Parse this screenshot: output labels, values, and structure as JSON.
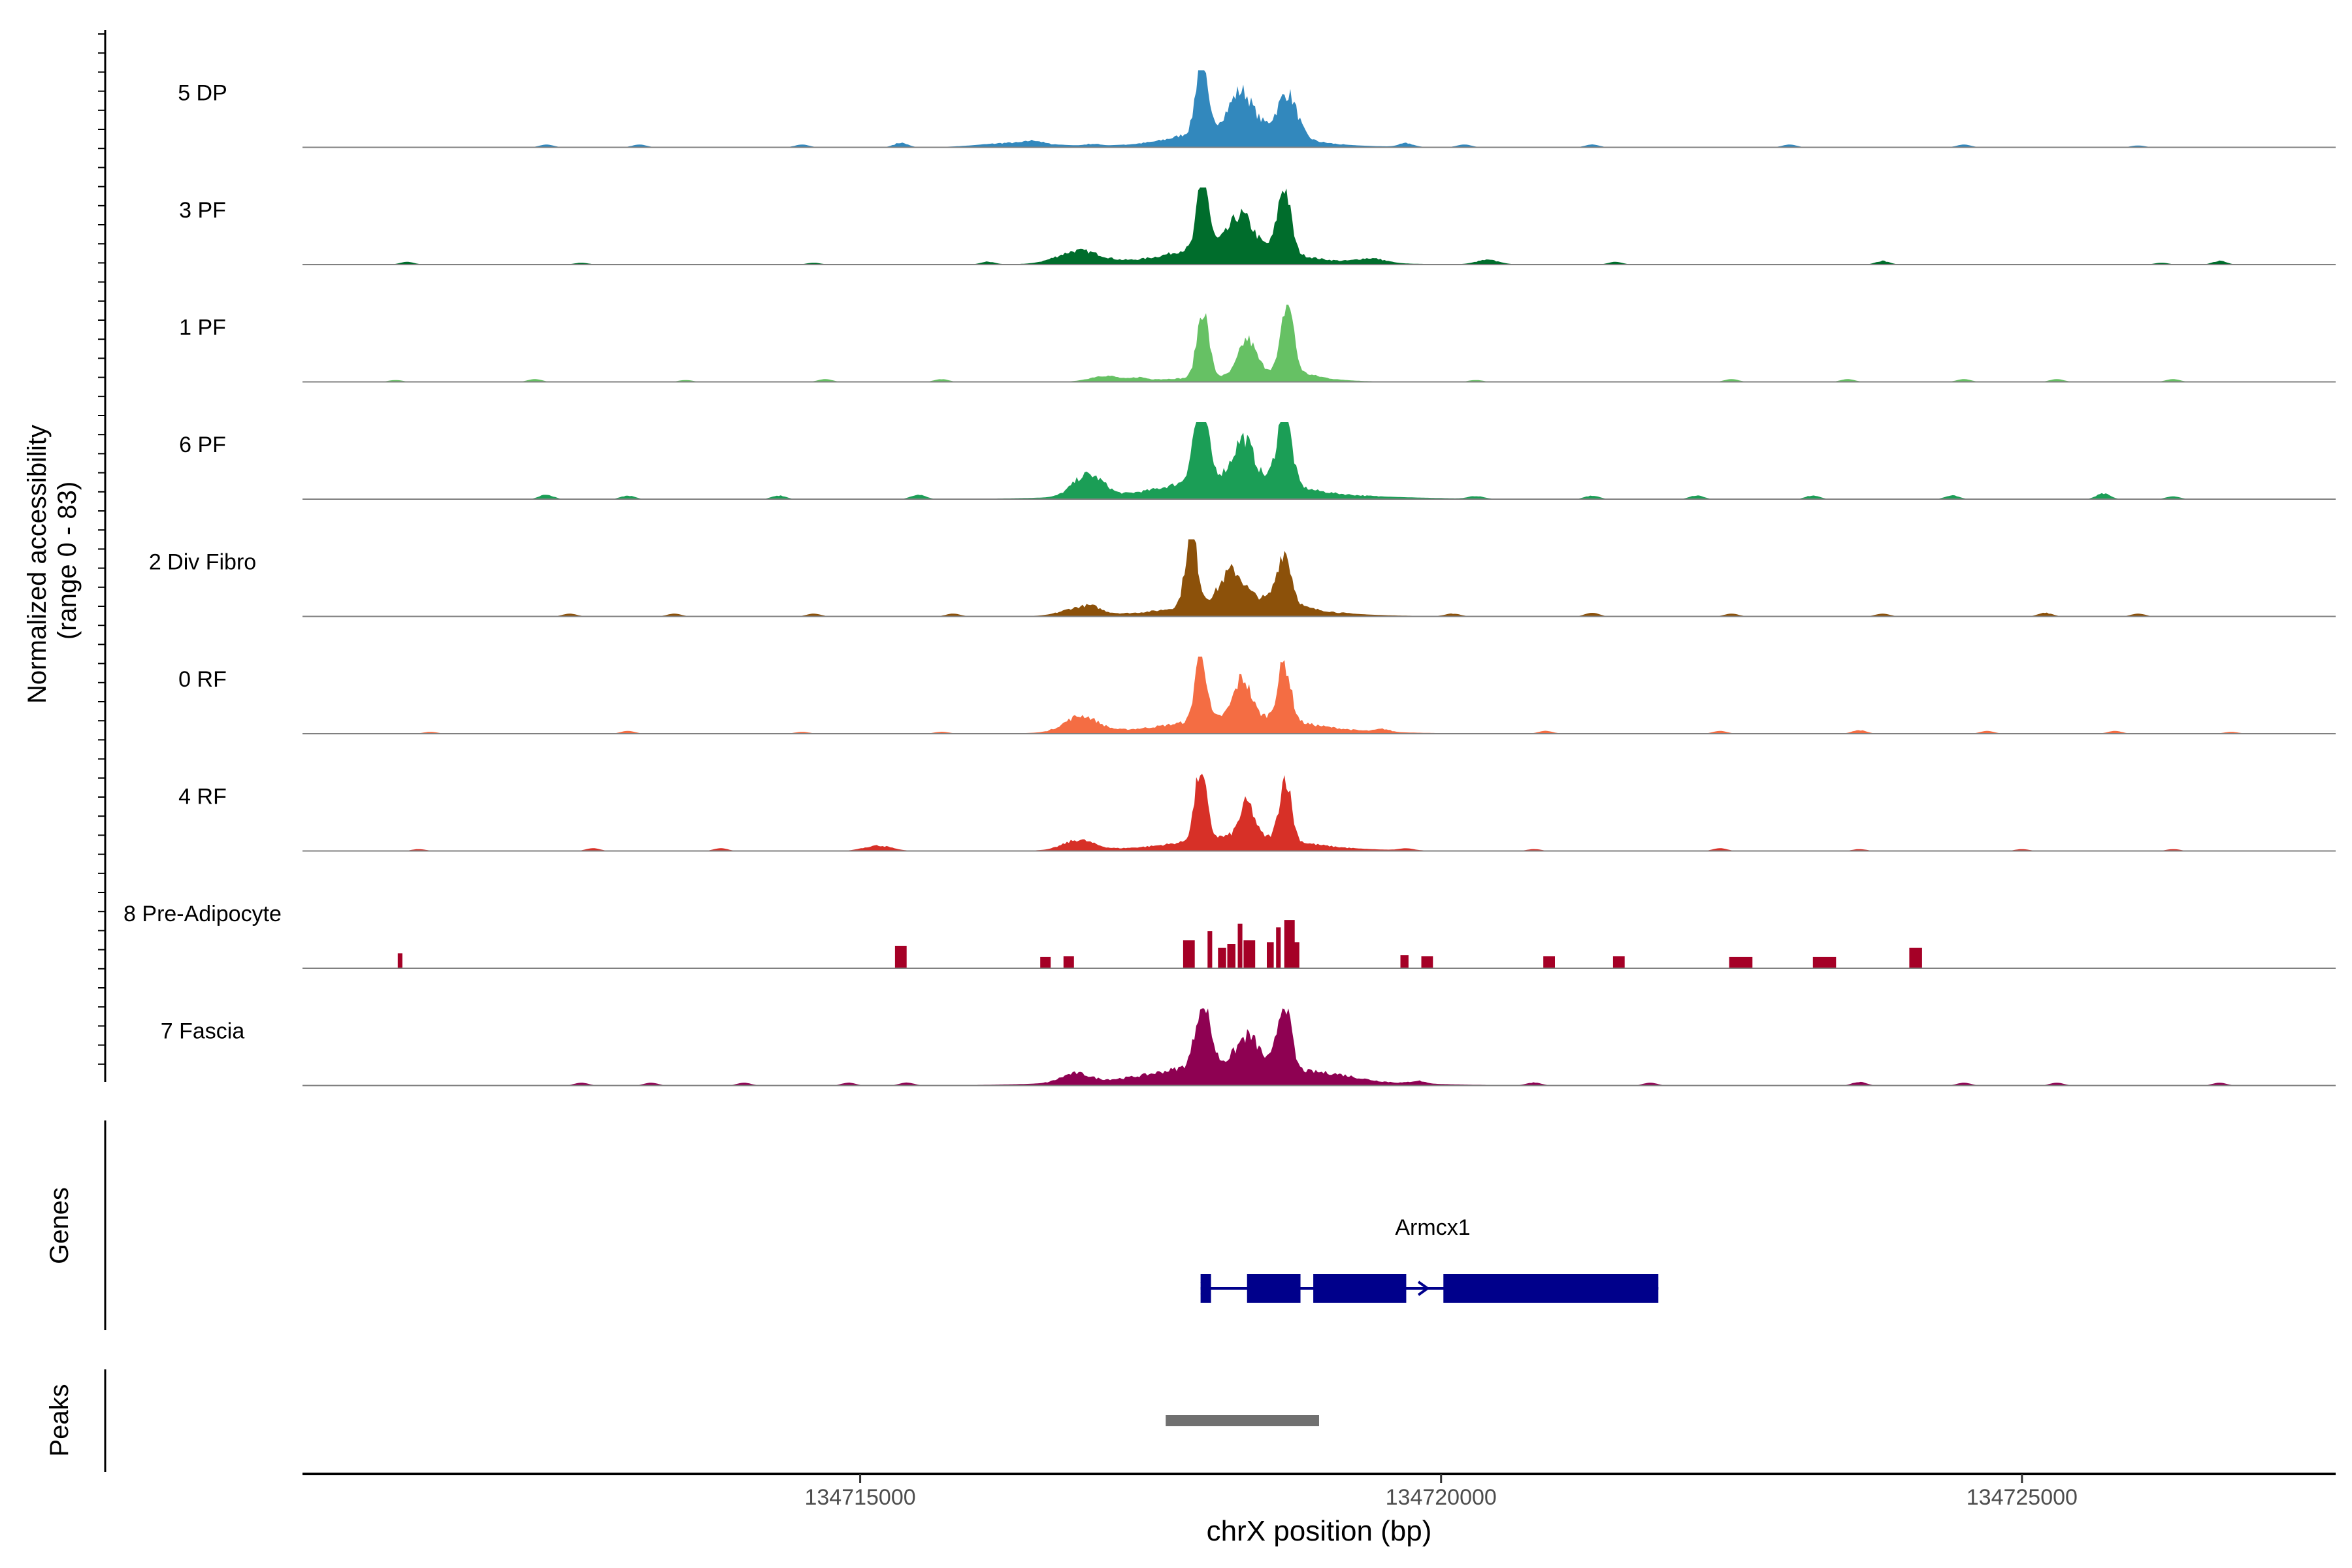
{
  "chart_data": {
    "type": "area",
    "title": "",
    "xlabel": "chrX position (bp)",
    "ylabel_line1": "Normalized accessibility",
    "ylabel_line2": "(range 0 - 83)",
    "y_range": [
      0,
      83
    ],
    "xlim": [
      134710200,
      134727700
    ],
    "x_ticks": [
      {
        "value": 134715000,
        "label": "134715000"
      },
      {
        "value": 134720000,
        "label": "134720000"
      },
      {
        "value": 134725000,
        "label": "134725000"
      }
    ],
    "tracks": [
      {
        "name": "5 DP",
        "color": "#3288bd",
        "peaks": [
          [
            134717935,
            80,
            45
          ],
          [
            134718280,
            35,
            90
          ],
          [
            134718680,
            45,
            80
          ],
          [
            134718250,
            22,
            350
          ],
          [
            134716350,
            5,
            300
          ],
          [
            134718200,
            6,
            700
          ],
          [
            134719700,
            4,
            60
          ]
        ],
        "noise": [
          [
            134712300,
            3
          ],
          [
            134713100,
            3
          ],
          [
            134714500,
            3
          ],
          [
            134715350,
            5
          ],
          [
            134716500,
            3
          ],
          [
            134717000,
            2
          ],
          [
            134720200,
            3
          ],
          [
            134721300,
            3
          ],
          [
            134723000,
            3
          ],
          [
            134724500,
            3
          ],
          [
            134726000,
            2
          ]
        ]
      },
      {
        "name": "3 PF",
        "color": "#006d2c",
        "peaks": [
          [
            134717950,
            82,
            45
          ],
          [
            134718280,
            30,
            90
          ],
          [
            134718650,
            72,
            55
          ],
          [
            134718200,
            20,
            380
          ],
          [
            134716880,
            14,
            180
          ],
          [
            134718200,
            6,
            800
          ],
          [
            134719400,
            5,
            120
          ],
          [
            134720400,
            5,
            100
          ]
        ],
        "noise": [
          [
            134711100,
            3
          ],
          [
            134712600,
            2
          ],
          [
            134714600,
            2
          ],
          [
            134716100,
            3
          ],
          [
            134721500,
            3
          ],
          [
            134723800,
            4
          ],
          [
            134726200,
            2
          ],
          [
            134726700,
            4
          ]
        ]
      },
      {
        "name": "1 PF",
        "color": "#66c164",
        "peaks": [
          [
            134717950,
            76,
            50
          ],
          [
            134718330,
            37,
            70
          ],
          [
            134718680,
            78,
            50
          ],
          [
            134718600,
            10,
            250
          ],
          [
            134717100,
            6,
            120
          ],
          [
            134718200,
            5,
            600
          ]
        ],
        "noise": [
          [
            134711000,
            2
          ],
          [
            134712200,
            3
          ],
          [
            134713500,
            2
          ],
          [
            134714700,
            3
          ],
          [
            134715700,
            3
          ],
          [
            134717400,
            3
          ],
          [
            134720300,
            2
          ],
          [
            134722500,
            3
          ],
          [
            134723500,
            3
          ],
          [
            134724500,
            3
          ],
          [
            134725300,
            3
          ],
          [
            134726300,
            3
          ]
        ]
      },
      {
        "name": "6 PF",
        "color": "#1b9e56",
        "peaks": [
          [
            134717930,
            85,
            60
          ],
          [
            134718300,
            42,
            80
          ],
          [
            134718650,
            83,
            60
          ],
          [
            134716950,
            24,
            120
          ],
          [
            134718200,
            20,
            420
          ],
          [
            134718200,
            7,
            950
          ]
        ],
        "noise": [
          [
            134712300,
            5
          ],
          [
            134713000,
            4
          ],
          [
            134714300,
            4
          ],
          [
            134715500,
            5
          ],
          [
            134717100,
            3
          ],
          [
            134720300,
            3
          ],
          [
            134721300,
            4
          ],
          [
            134722200,
            4
          ],
          [
            134723200,
            4
          ],
          [
            134724400,
            4
          ],
          [
            134725700,
            6
          ],
          [
            134726300,
            3
          ]
        ]
      },
      {
        "name": "2 Div Fibro",
        "color": "#8c510a",
        "peaks": [
          [
            134717850,
            82,
            50
          ],
          [
            134718200,
            30,
            90
          ],
          [
            134718650,
            57,
            60
          ],
          [
            134718300,
            16,
            380
          ],
          [
            134716900,
            9,
            150
          ],
          [
            134718200,
            6,
            750
          ]
        ],
        "noise": [
          [
            134712500,
            3
          ],
          [
            134713400,
            3
          ],
          [
            134714600,
            3
          ],
          [
            134715800,
            3
          ],
          [
            134717000,
            3
          ],
          [
            134720100,
            3
          ],
          [
            134721300,
            4
          ],
          [
            134722500,
            3
          ],
          [
            134723800,
            3
          ],
          [
            134725200,
            4
          ],
          [
            134726000,
            3
          ]
        ]
      },
      {
        "name": "0 RF",
        "color": "#f46d43",
        "peaks": [
          [
            134717930,
            84,
            45
          ],
          [
            134718290,
            42,
            70
          ],
          [
            134718650,
            63,
            55
          ],
          [
            134716900,
            18,
            140
          ],
          [
            134718300,
            14,
            450
          ],
          [
            134718200,
            6,
            850
          ]
        ],
        "noise": [
          [
            134711300,
            2
          ],
          [
            134713000,
            3
          ],
          [
            134714500,
            2
          ],
          [
            134715700,
            2
          ],
          [
            134719500,
            3
          ],
          [
            134720900,
            3
          ],
          [
            134722400,
            3
          ],
          [
            134723600,
            4
          ],
          [
            134724700,
            3
          ],
          [
            134725800,
            3
          ],
          [
            134726800,
            2
          ]
        ]
      },
      {
        "name": "4 RF",
        "color": "#d73027",
        "peaks": [
          [
            134717930,
            78,
            50
          ],
          [
            134718330,
            37,
            60
          ],
          [
            134718660,
            70,
            50
          ],
          [
            134718300,
            12,
            420
          ],
          [
            134716880,
            11,
            130
          ],
          [
            134715150,
            6,
            120
          ],
          [
            134718200,
            5,
            800
          ]
        ],
        "noise": [
          [
            134711200,
            2
          ],
          [
            134712700,
            3
          ],
          [
            134713800,
            3
          ],
          [
            134719700,
            2
          ],
          [
            134720800,
            2
          ],
          [
            134722400,
            3
          ],
          [
            134723600,
            2
          ],
          [
            134725000,
            2
          ],
          [
            134726300,
            2
          ]
        ]
      },
      {
        "name": "8 Pre-Adipocyte",
        "color": "#a50026",
        "blocks": [
          [
            134711020,
            134711060,
            16
          ],
          [
            134715300,
            134715400,
            24
          ],
          [
            134716550,
            134716640,
            12
          ],
          [
            134716750,
            134716840,
            13
          ],
          [
            134717780,
            134717880,
            30
          ],
          [
            134717990,
            134718030,
            40
          ],
          [
            134718080,
            134718150,
            22
          ],
          [
            134718160,
            134718230,
            26
          ],
          [
            134718250,
            134718290,
            48
          ],
          [
            134718300,
            134718400,
            30
          ],
          [
            134718500,
            134718560,
            28
          ],
          [
            134718580,
            134718620,
            44
          ],
          [
            134718650,
            134718740,
            52
          ],
          [
            134718740,
            134718780,
            28
          ],
          [
            134719650,
            134719720,
            14
          ],
          [
            134719830,
            134719930,
            13
          ],
          [
            134720880,
            134720980,
            13
          ],
          [
            134721480,
            134721580,
            13
          ],
          [
            134722480,
            134722680,
            12
          ],
          [
            134723200,
            134723400,
            12
          ],
          [
            134724030,
            134724140,
            22
          ]
        ]
      },
      {
        "name": "7 Fascia",
        "color": "#8e0152",
        "peaks": [
          [
            134717950,
            75,
            60
          ],
          [
            134718340,
            30,
            90
          ],
          [
            134718650,
            78,
            55
          ],
          [
            134718200,
            18,
            500
          ],
          [
            134716850,
            10,
            120
          ],
          [
            134718200,
            8,
            1000
          ],
          [
            134719100,
            4,
            200
          ]
        ],
        "noise": [
          [
            134712600,
            3
          ],
          [
            134713200,
            3
          ],
          [
            134714000,
            3
          ],
          [
            134714900,
            3
          ],
          [
            134715400,
            3
          ],
          [
            134719800,
            3
          ],
          [
            134720800,
            3
          ],
          [
            134721800,
            3
          ],
          [
            134723600,
            4
          ],
          [
            134724500,
            3
          ],
          [
            134725300,
            3
          ],
          [
            134726700,
            3
          ]
        ]
      }
    ],
    "genes_label": "Genes",
    "gene": {
      "name": "Armcx1",
      "color": "#00008b",
      "line_start": 134717930,
      "line_end": 134721870,
      "exons": [
        [
          134717930,
          134718020
        ],
        [
          134718330,
          134718790
        ],
        [
          134718900,
          134719700
        ],
        [
          134720020,
          134721870
        ]
      ],
      "arrows": [
        134717980,
        134718600,
        134719850
      ]
    },
    "peaks_label": "Peaks",
    "peaks": [
      {
        "start": 134717630,
        "end": 134718950,
        "color": "#707070"
      }
    ]
  }
}
